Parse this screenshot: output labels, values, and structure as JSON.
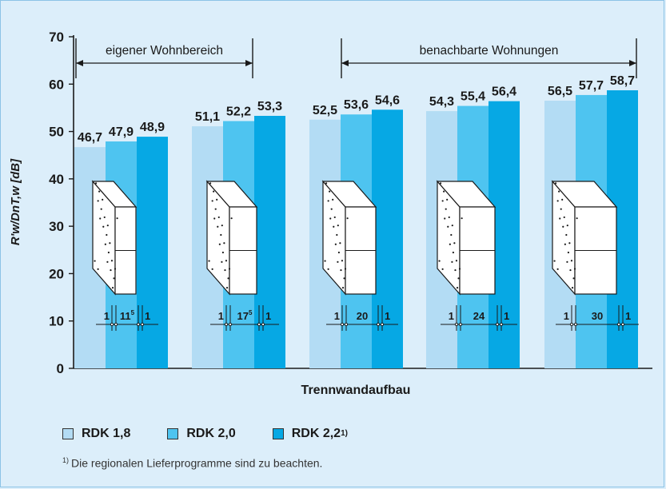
{
  "chart_data": {
    "type": "bar",
    "ylabel": "R'w/DnT,w [dB]",
    "xlabel": "Trennwandaufbau",
    "ylim": [
      0,
      70
    ],
    "yticks": [
      0,
      10,
      20,
      30,
      40,
      50,
      60,
      70
    ],
    "grid": false,
    "legend_position": "bottom-left",
    "categories": [
      "1 | 11⁵ | 1",
      "1 | 17⁵ | 1",
      "1 | 20 | 1",
      "1 | 24 | 1",
      "1 | 30 | 1"
    ],
    "wall_dims": [
      {
        "left": "1",
        "mid": "11",
        "sup": "5",
        "right": "1"
      },
      {
        "left": "1",
        "mid": "17",
        "sup": "5",
        "right": "1"
      },
      {
        "left": "1",
        "mid": "20",
        "sup": "",
        "right": "1"
      },
      {
        "left": "1",
        "mid": "24",
        "sup": "",
        "right": "1"
      },
      {
        "left": "1",
        "mid": "30",
        "sup": "",
        "right": "1"
      }
    ],
    "series": [
      {
        "name": "RDK 1,8",
        "color": "#b3dcf4",
        "values": [
          46.7,
          51.1,
          52.5,
          54.3,
          56.5
        ],
        "labels": [
          "46,7",
          "51,1",
          "52,5",
          "54,3",
          "56,5"
        ]
      },
      {
        "name": "RDK 2,0",
        "color": "#4ec4f0",
        "values": [
          47.9,
          52.2,
          53.6,
          55.4,
          57.7
        ],
        "labels": [
          "47,9",
          "52,2",
          "53,6",
          "55,4",
          "57,7"
        ]
      },
      {
        "name": "RDK 2,2",
        "name_sup": "1)",
        "color": "#06a8e4",
        "values": [
          48.9,
          53.3,
          54.6,
          56.4,
          58.7
        ],
        "labels": [
          "48,9",
          "53,3",
          "54,6",
          "56,4",
          "58,7"
        ]
      }
    ],
    "brackets": [
      {
        "label": "eigener Wohnbereich",
        "from_category": 0,
        "to_category": 1
      },
      {
        "label": "benachbarte Wohnungen",
        "from_category": 2,
        "to_category": 4
      }
    ]
  },
  "legend": {
    "items": [
      {
        "label": "RDK 1,8",
        "sup": "",
        "color": "#b3dcf4"
      },
      {
        "label": "RDK 2,0",
        "sup": "",
        "color": "#4ec4f0"
      },
      {
        "label": "RDK 2,2",
        "sup": "1)",
        "color": "#06a8e4"
      }
    ]
  },
  "footnote": {
    "marker": "1)",
    "text": "Die regionalen Lieferprogramme sind zu beachten."
  }
}
